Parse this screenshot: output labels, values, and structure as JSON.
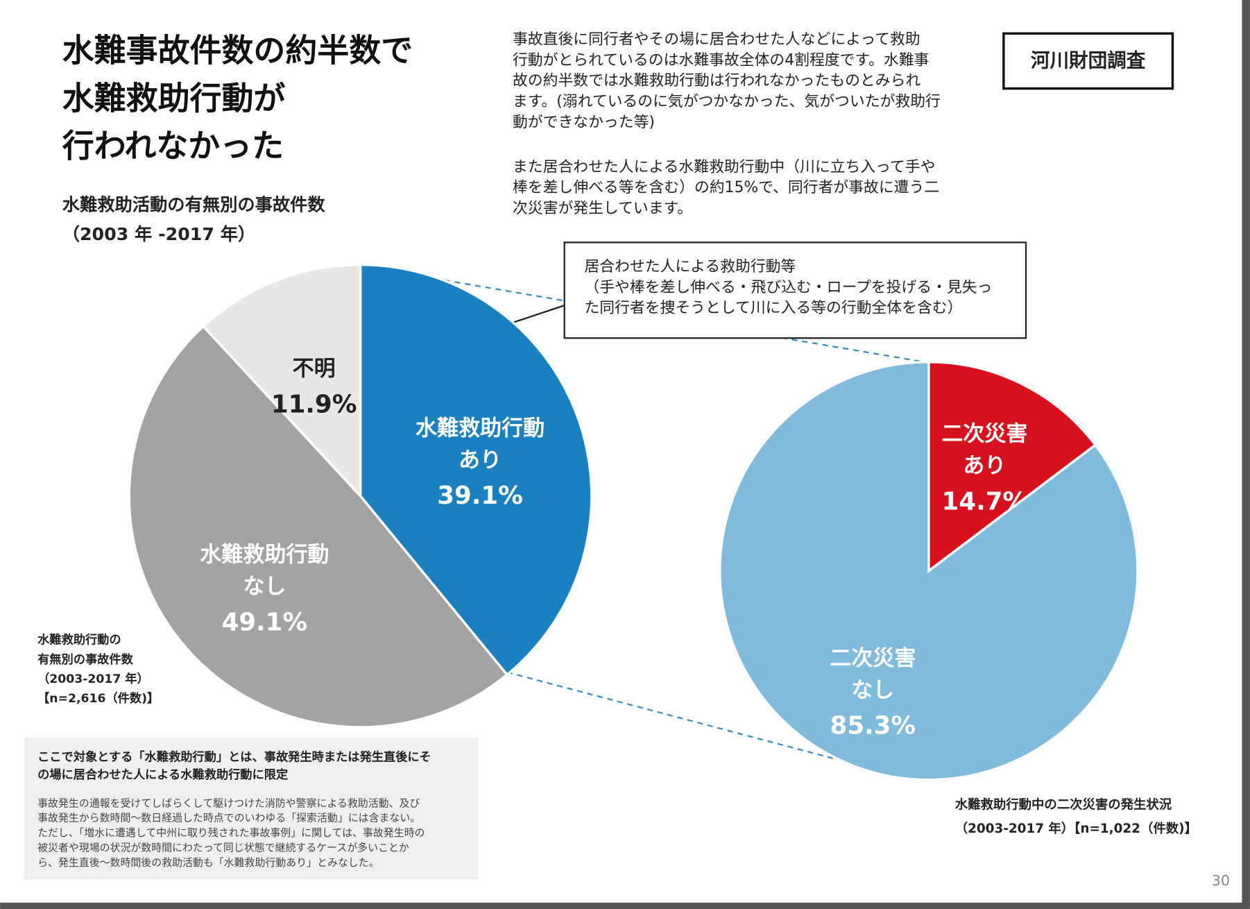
{
  "slide": {
    "title": [
      "水難事故件数の約半数で",
      "水難救助行動が",
      "行われなかった"
    ],
    "subtitle": [
      "水難救助活動の有無別の事故件数",
      "（2003 年 -2017 年）"
    ],
    "body": [
      [
        "事故直後に同行者やその場に居合わせた人などによって救助",
        "行動がとられているのは水難事故全体の4割程度です。水難事",
        "故の約半数では水難救助行動は行われなかったものとみられ",
        "ます。(溺れているのに気がつかなかった、気がついたが救助行",
        "動ができなかった等)"
      ],
      [
        "また居合わせた人による水難救助行動中（川に立ち入って手や",
        "棒を差し伸べる等を含む）の約15%で、同行者が事故に遭う二",
        "次災害が発生しています。"
      ]
    ],
    "source": "河川財団調査",
    "callout": [
      "居合わせた人による救助行動等",
      "（手や棒を差し伸べる・飛び込む・ロープを投げる・見失っ",
      "た同行者を捜そうとして川に入る等の行動全体を含む）"
    ],
    "definition": {
      "heading": [
        "ここで対象とする「水難救助行動」とは、事故発生時または発生直後にそ",
        "の場に居合わせた人による水難救助行動に限定"
      ],
      "body": [
        "事故発生の通報を受けてしばらくして駆けつけた消防や警察による救助活動、及び",
        "事故発生から数時間～数日経過した時点でのいわゆる「探索活動」には含まない。",
        "ただし、「増水に遭遇して中州に取り残された事故事例」に関しては、事故発生時の",
        "被災者や現場の状況が数時間にわたって同じ状態で継続するケースが多いことか",
        "ら、発生直後～数時間後の救助活動も「水難救助行動あり」とみなした。"
      ]
    },
    "page_number": "30"
  },
  "chart_data": [
    {
      "type": "pie",
      "categories": [
        [
          "水難救助行動",
          "あり"
        ],
        [
          "水難救助行動",
          "なし"
        ],
        [
          "不明"
        ]
      ],
      "values": [
        39.1,
        49.1,
        11.9
      ],
      "value_labels": [
        "39.1%",
        "49.1%",
        "11.9%"
      ],
      "colors": [
        "#1a80bf",
        "#a3a3a3",
        "#e7e7e8"
      ],
      "caption": [
        "水難救助行動の",
        "有無別の事故件数",
        "（2003-2017 年）",
        "【n=2,616（件数)】"
      ]
    },
    {
      "type": "pie",
      "categories": [
        [
          "二次災害",
          "あり"
        ],
        [
          "二次災害",
          "なし"
        ]
      ],
      "values": [
        14.7,
        85.3
      ],
      "value_labels": [
        "14.7%",
        "85.3%"
      ],
      "colors": [
        "#d5121e",
        "#80badd"
      ],
      "caption": [
        "水難救助行動中の二次災害の発生状況",
        "（2003-2017 年）【n=1,022（件数)】"
      ]
    }
  ]
}
